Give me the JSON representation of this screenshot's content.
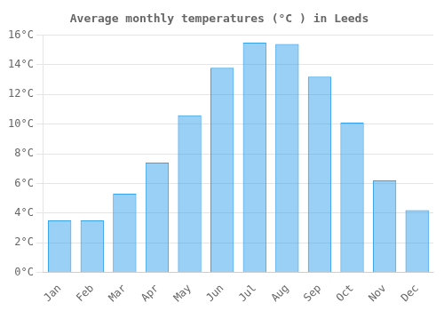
{
  "chart_data": {
    "type": "bar",
    "title": "Average monthly temperatures (°C ) in Leeds",
    "categories": [
      "Jan",
      "Feb",
      "Mar",
      "Apr",
      "May",
      "Jun",
      "Jul",
      "Aug",
      "Sep",
      "Oct",
      "Nov",
      "Dec"
    ],
    "values": [
      3.5,
      3.5,
      5.3,
      7.4,
      10.6,
      13.8,
      15.5,
      15.4,
      13.2,
      10.1,
      6.2,
      4.2
    ],
    "ylim": [
      0,
      16
    ],
    "yticks": [
      {
        "value": 0,
        "label": "0°C"
      },
      {
        "value": 2,
        "label": "2°C"
      },
      {
        "value": 4,
        "label": "4°C"
      },
      {
        "value": 6,
        "label": "6°C"
      },
      {
        "value": 8,
        "label": "8°C"
      },
      {
        "value": 10,
        "label": "10°C"
      },
      {
        "value": 12,
        "label": "12°C"
      },
      {
        "value": 14,
        "label": "14°C"
      },
      {
        "value": 16,
        "label": "16°C"
      }
    ],
    "grid": true
  }
}
